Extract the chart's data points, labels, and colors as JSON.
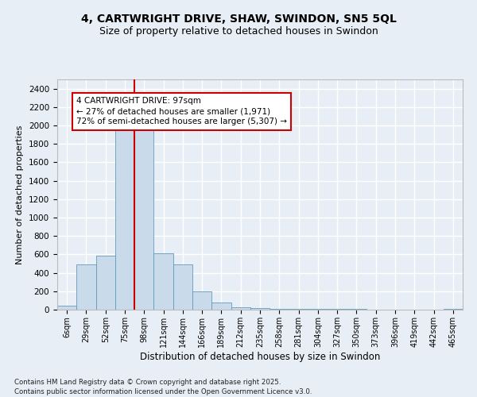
{
  "title_line1": "4, CARTWRIGHT DRIVE, SHAW, SWINDON, SN5 5QL",
  "title_line2": "Size of property relative to detached houses in Swindon",
  "xlabel": "Distribution of detached houses by size in Swindon",
  "ylabel": "Number of detached properties",
  "footnote": "Contains HM Land Registry data © Crown copyright and database right 2025.\nContains public sector information licensed under the Open Government Licence v3.0.",
  "bar_color": "#c9daea",
  "bar_edge_color": "#6699bb",
  "background_color": "#e8eef5",
  "grid_color": "#ffffff",
  "categories": [
    "6sqm",
    "29sqm",
    "52sqm",
    "75sqm",
    "98sqm",
    "121sqm",
    "144sqm",
    "166sqm",
    "189sqm",
    "212sqm",
    "235sqm",
    "258sqm",
    "281sqm",
    "304sqm",
    "327sqm",
    "350sqm",
    "373sqm",
    "396sqm",
    "419sqm",
    "442sqm",
    "465sqm"
  ],
  "values": [
    45,
    495,
    590,
    1960,
    1950,
    615,
    490,
    195,
    75,
    30,
    18,
    12,
    10,
    8,
    6,
    5,
    4,
    3,
    2,
    0,
    5
  ],
  "ylim": [
    0,
    2500
  ],
  "yticks": [
    0,
    200,
    400,
    600,
    800,
    1000,
    1200,
    1400,
    1600,
    1800,
    2000,
    2200,
    2400
  ],
  "vline_x": 3.5,
  "vline_color": "#cc0000",
  "annotation_text": "4 CARTWRIGHT DRIVE: 97sqm\n← 27% of detached houses are smaller (1,971)\n72% of semi-detached houses are larger (5,307) →",
  "annotation_box_color": "#ffffff",
  "annotation_box_edge": "#cc0000",
  "annotation_fontsize": 7.5
}
